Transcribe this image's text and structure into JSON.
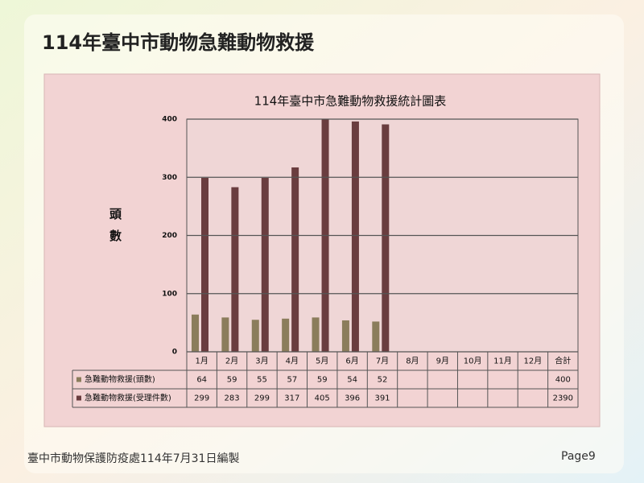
{
  "slide_title": "114年臺中市動物急難動物救援",
  "footer": "臺中市動物保護防疫處114年7月31日編製",
  "page_label": "Page9",
  "chart_data": {
    "type": "bar",
    "title": "114年臺中市急難動物救援統計圖表",
    "ylabel": "頭數",
    "categories": [
      "1月",
      "2月",
      "3月",
      "4月",
      "5月",
      "6月",
      "7月",
      "8月",
      "9月",
      "10月",
      "11月",
      "12月"
    ],
    "total_label": "合計",
    "series": [
      {
        "name": "急難動物救援(頭數)",
        "color": "#8b7d5c",
        "values": [
          64,
          59,
          55,
          57,
          59,
          54,
          52,
          null,
          null,
          null,
          null,
          null
        ],
        "total": 400
      },
      {
        "name": "急難動物救援(受理件數)",
        "color": "#6a3d3f",
        "values": [
          299,
          283,
          299,
          317,
          405,
          396,
          391,
          null,
          null,
          null,
          null,
          null
        ],
        "total": 2390
      }
    ],
    "ylim": [
      0,
      400
    ],
    "yticks": [
      0,
      100,
      200,
      300,
      400
    ],
    "grid": true
  }
}
